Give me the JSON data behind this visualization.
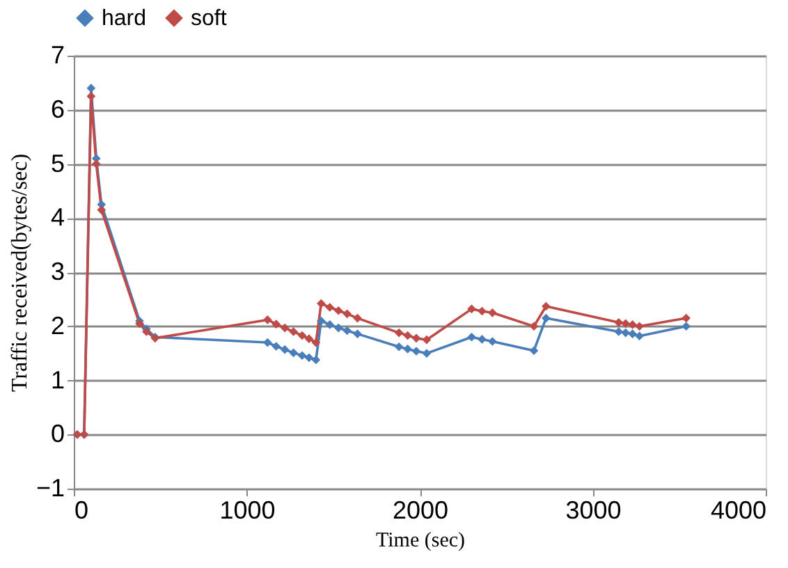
{
  "chart_data": {
    "type": "line",
    "xlabel": "Time (sec)",
    "ylabel": "Traffic  received(bytes/sec)",
    "x": [
      20,
      60,
      100,
      130,
      160,
      380,
      420,
      470,
      1120,
      1170,
      1220,
      1270,
      1320,
      1360,
      1400,
      1430,
      1480,
      1530,
      1580,
      1640,
      1880,
      1930,
      1980,
      2040,
      2300,
      2360,
      2420,
      2660,
      2730,
      3150,
      3190,
      3230,
      3270,
      3540
    ],
    "series": [
      {
        "name": "hard",
        "color": "#4a7ebb",
        "values": [
          0,
          0,
          6.4,
          5.1,
          4.25,
          2.1,
          1.95,
          1.8,
          1.7,
          1.63,
          1.57,
          1.51,
          1.46,
          1.42,
          1.38,
          2.1,
          2.03,
          1.97,
          1.92,
          1.86,
          1.62,
          1.58,
          1.54,
          1.5,
          1.8,
          1.76,
          1.72,
          1.55,
          2.15,
          1.9,
          1.88,
          1.86,
          1.82,
          2.0
        ]
      },
      {
        "name": "soft",
        "color": "#be4b48",
        "values": [
          0,
          0,
          6.25,
          5.0,
          4.15,
          2.05,
          1.9,
          1.78,
          2.12,
          2.04,
          1.97,
          1.9,
          1.83,
          1.77,
          1.7,
          2.42,
          2.35,
          2.29,
          2.23,
          2.15,
          1.88,
          1.83,
          1.78,
          1.75,
          2.32,
          2.28,
          2.25,
          2.0,
          2.37,
          2.07,
          2.05,
          2.03,
          2.0,
          2.15
        ]
      }
    ],
    "xlim": [
      0,
      4000
    ],
    "xticks": [
      0,
      1000,
      2000,
      3000,
      4000
    ],
    "ylim": [
      -1,
      7
    ],
    "yticks": [
      -1,
      0,
      1,
      2,
      3,
      4,
      5,
      6,
      7
    ],
    "grid": "y",
    "legend": "top",
    "marker": "diamond",
    "line_style": "solid"
  }
}
